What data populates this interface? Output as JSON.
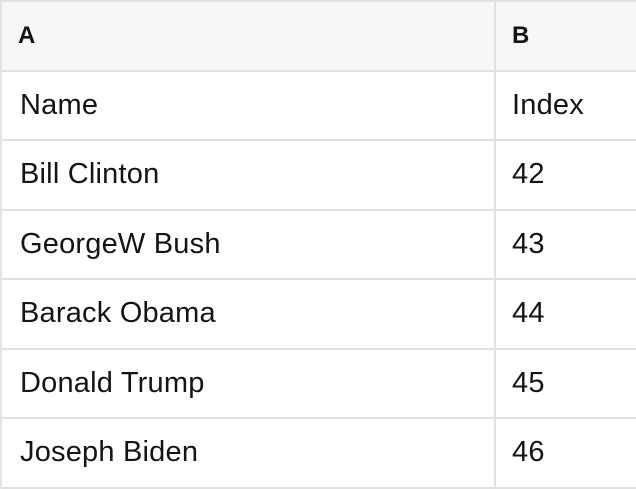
{
  "table": {
    "column_headers": [
      {
        "label": "A"
      },
      {
        "label": "B"
      }
    ],
    "rows": [
      {
        "a": "Name",
        "b": "Index"
      },
      {
        "a": "Bill Clinton",
        "b": "42"
      },
      {
        "a": "GeorgeW Bush",
        "b": "43"
      },
      {
        "a": "Barack Obama",
        "b": "44"
      },
      {
        "a": "Donald Trump",
        "b": "45"
      },
      {
        "a": "Joseph Biden",
        "b": "46"
      }
    ],
    "colors": {
      "header_background": "#f7f7f7",
      "body_background": "#ffffff",
      "border": "#e0e0e0",
      "text": "#141414"
    }
  }
}
